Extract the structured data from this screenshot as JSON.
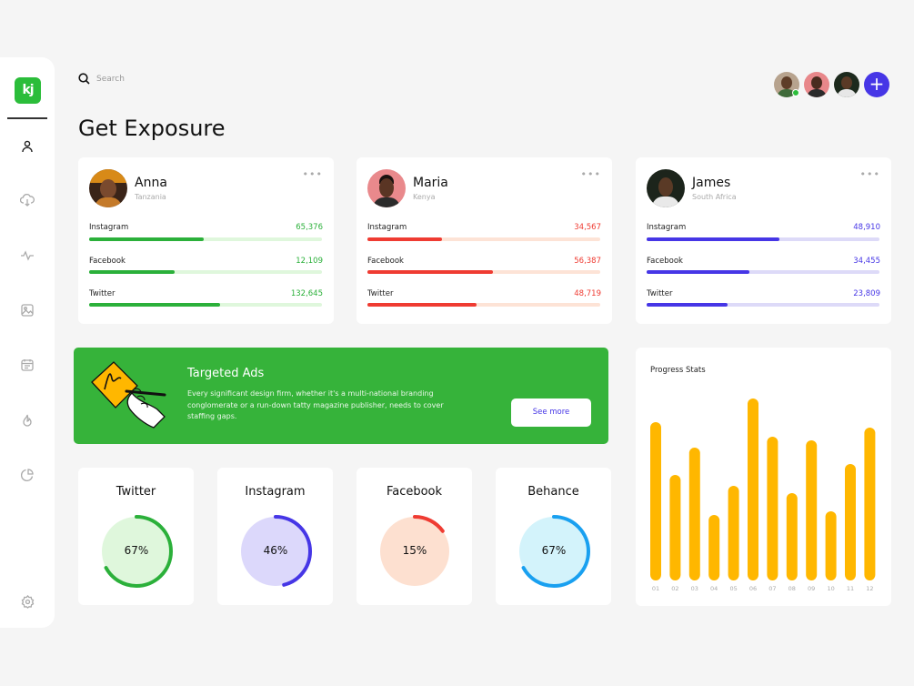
{
  "logo": {
    "text": "kj"
  },
  "search": {
    "placeholder": "Search"
  },
  "page_title": "Get Exposure",
  "profiles": [
    {
      "name": "Anna",
      "location": "Tanzania",
      "color": "#2bb03a",
      "track": "#dff7dc",
      "stats": [
        {
          "label": "Instagram",
          "value": "65,376",
          "progress": 0.49
        },
        {
          "label": "Facebook",
          "value": "12,109",
          "progress": 0.37
        },
        {
          "label": "Twitter",
          "value": "132,645",
          "progress": 0.56
        }
      ]
    },
    {
      "name": "Maria",
      "location": "Kenya",
      "color": "#ef3b32",
      "track": "#fde3d6",
      "stats": [
        {
          "label": "Instagram",
          "value": "34,567",
          "progress": 0.32
        },
        {
          "label": "Facebook",
          "value": "56,387",
          "progress": 0.54
        },
        {
          "label": "Twitter",
          "value": "48,719",
          "progress": 0.47
        }
      ]
    },
    {
      "name": "James",
      "location": "South Africa",
      "color": "#4636e6",
      "track": "#dddaf8",
      "stats": [
        {
          "label": "Instagram",
          "value": "48,910",
          "progress": 0.57
        },
        {
          "label": "Facebook",
          "value": "34,455",
          "progress": 0.44
        },
        {
          "label": "Twitter",
          "value": "23,809",
          "progress": 0.35
        }
      ]
    }
  ],
  "banner": {
    "title": "Targeted Ads",
    "text": "Every significant design firm, whether it's a multi-national branding conglomerate or a run-down tatty magazine publisher, needs to cover staffing gaps.",
    "button": "See more"
  },
  "donuts": [
    {
      "title": "Twitter",
      "label": "67%",
      "percent": 67,
      "color": "#2bb03a",
      "bg": "#dff7dc"
    },
    {
      "title": "Instagram",
      "label": "46%",
      "percent": 46,
      "color": "#4636e6",
      "bg": "#dcd8fb"
    },
    {
      "title": "Facebook",
      "label": "15%",
      "percent": 15,
      "color": "#ef3b32",
      "bg": "#fde0d0"
    },
    {
      "title": "Behance",
      "label": "67%",
      "percent": 67,
      "color": "#19a0f0",
      "bg": "#d3f3fb"
    }
  ],
  "chart_data": {
    "type": "bar",
    "title": "Progress Stats",
    "categories": [
      "01",
      "02",
      "03",
      "04",
      "05",
      "06",
      "07",
      "08",
      "09",
      "10",
      "11",
      "12"
    ],
    "values": [
      87,
      58,
      73,
      36,
      52,
      100,
      79,
      48,
      77,
      38,
      64,
      84
    ],
    "ylim": [
      0,
      100
    ],
    "color": "#ffb700",
    "grid": false
  }
}
